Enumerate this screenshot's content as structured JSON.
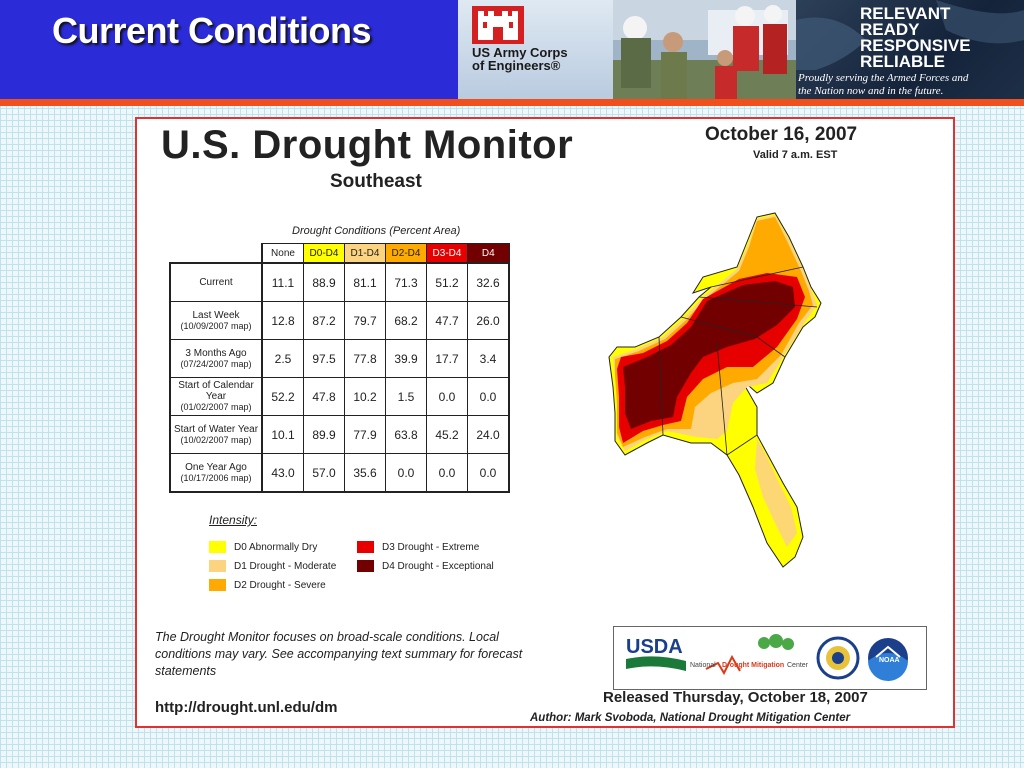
{
  "slide": {
    "title": "Current Conditions"
  },
  "header": {
    "usace_name_line1": "US Army Corps",
    "usace_name_line2": "of Engineers®",
    "motto": [
      "RELEVANT",
      "READY",
      "RESPONSIVE",
      "RELIABLE"
    ],
    "tagline_line1": "Proudly serving the Armed Forces and",
    "tagline_line2": "the Nation now and in the future."
  },
  "monitor": {
    "title": "U.S. Drought Monitor",
    "region": "Southeast",
    "date": "October 16, 2007",
    "valid": "Valid 7 a.m. EST",
    "table_caption": "Drought Conditions (Percent Area)",
    "columns": [
      {
        "label": "None",
        "color": "#ffffff"
      },
      {
        "label": "D0-D4",
        "color": "#ffff00"
      },
      {
        "label": "D1-D4",
        "color": "#fcd37f"
      },
      {
        "label": "D2-D4",
        "color": "#ffaa00"
      },
      {
        "label": "D3-D4",
        "color": "#e60000"
      },
      {
        "label": "D4",
        "color": "#730000"
      }
    ],
    "rows": [
      {
        "label": "Current",
        "date": "",
        "values": [
          "11.1",
          "88.9",
          "81.1",
          "71.3",
          "51.2",
          "32.6"
        ]
      },
      {
        "label": "Last Week",
        "date": "(10/09/2007 map)",
        "values": [
          "12.8",
          "87.2",
          "79.7",
          "68.2",
          "47.7",
          "26.0"
        ]
      },
      {
        "label": "3 Months Ago",
        "date": "(07/24/2007 map)",
        "values": [
          "2.5",
          "97.5",
          "77.8",
          "39.9",
          "17.7",
          "3.4"
        ]
      },
      {
        "label": "Start of Calendar Year",
        "date": "(01/02/2007 map)",
        "values": [
          "52.2",
          "47.8",
          "10.2",
          "1.5",
          "0.0",
          "0.0"
        ]
      },
      {
        "label": "Start of Water Year",
        "date": "(10/02/2007 map)",
        "values": [
          "10.1",
          "89.9",
          "77.9",
          "63.8",
          "45.2",
          "24.0"
        ]
      },
      {
        "label": "One Year Ago",
        "date": "(10/17/2006 map)",
        "values": [
          "43.0",
          "57.0",
          "35.6",
          "0.0",
          "0.0",
          "0.0"
        ]
      }
    ],
    "intensity_title": "Intensity:",
    "legend": [
      {
        "label": "D0 Abnormally Dry",
        "color": "#ffff00"
      },
      {
        "label": "D1 Drought - Moderate",
        "color": "#fcd37f"
      },
      {
        "label": "D2 Drought - Severe",
        "color": "#ffaa00"
      },
      {
        "label": "D3 Drought - Extreme",
        "color": "#e60000"
      },
      {
        "label": "D4 Drought - Exceptional",
        "color": "#730000"
      }
    ],
    "note": "The Drought Monitor focuses on broad-scale conditions. Local conditions may vary. See accompanying text summary for forecast statements",
    "url": "http://drought.unl.edu/dm",
    "logos": {
      "usda": "USDA",
      "ndmc_prefix": "National",
      "ndmc_highlight": "Drought Mitigation",
      "ndmc_suffix": "Center",
      "noaa": "NOAA"
    },
    "released": "Released Thursday, October 18, 2007",
    "author": "Author: Mark Svoboda, National Drought Mitigation Center"
  }
}
